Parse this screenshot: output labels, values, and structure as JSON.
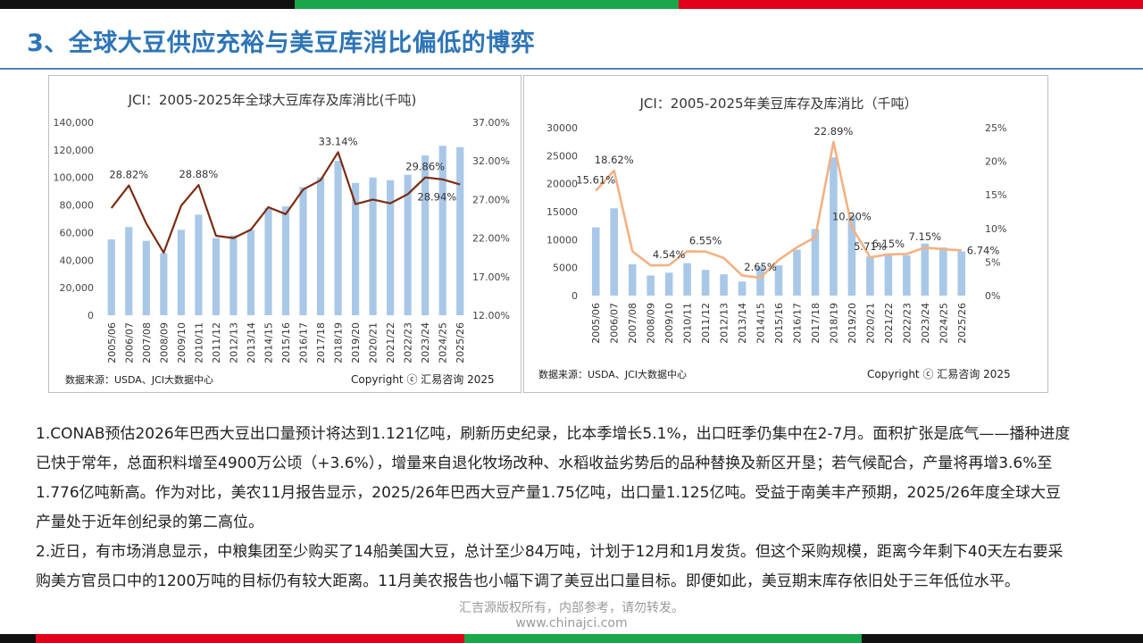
{
  "page": {
    "title": "3、全球大豆供应充裕与美豆库消比偏低的博弈",
    "paragraph1": "1.CONAB预估2026年巴西大豆出口量预计将达到1.121亿吨，刷新历史纪录，比本季增长5.1%，出口旺季仍集中在2-7月。面积扩张是底气——播种进度已快于常年，总面积料增至4900万公顷（+3.6%），增量来自退化牧场改种、水稻收益劣势后的品种替换及新区开垦；若气候配合，产量将再增3.6%至1.776亿吨新高。作为对比，美农11月报告显示，2025/26年巴西大豆产量1.75亿吨，出口量1.125亿吨。受益于南美丰产预期，2025/26年度全球大豆产量处于近年创纪录的第二高位。",
    "paragraph2": "2.近日，有市场消息显示，中粮集团至少购买了14船美国大豆，总计至少84万吨，计划于12月和1月发货。但这个采购规模，距离今年剩下40天左右要采购美方官员口中的1200万吨的目标仍有较大距离。11月美农报告也小幅下调了美豆出口量目标。即便如此，美豆期末库存依旧处于三年低位水平。",
    "footer_line1": "汇吉源版权所有，内部参考，请勿转发。",
    "footer_line2": "www.chinajci.com",
    "colors": {
      "title": "#2e75b6",
      "bar": "#a9c8e8",
      "line_global": "#7b2c12",
      "line_us": "#f4b183",
      "stripe_red": "#e2001a",
      "stripe_green": "#1aa64a",
      "stripe_black": "#111111"
    }
  },
  "chart_data": [
    {
      "type": "bar",
      "title": "JCI：2005-2025年全球大豆库存及库消比(千吨)",
      "categories": [
        "2005/06",
        "2006/07",
        "2007/08",
        "2008/09",
        "2009/10",
        "2010/11",
        "2011/12",
        "2012/13",
        "2013/14",
        "2014/15",
        "2015/16",
        "2016/17",
        "2017/18",
        "2018/19",
        "2019/20",
        "2020/21",
        "2021/22",
        "2022/23",
        "2023/24",
        "2024/25",
        "2025/26"
      ],
      "series": [
        {
          "values": [
            55000,
            64000,
            54000,
            45000,
            62000,
            73000,
            56000,
            58000,
            62000,
            78000,
            79000,
            93000,
            100000,
            112000,
            96000,
            100000,
            98000,
            102000,
            116000,
            123000,
            122000
          ]
        },
        {
          "axis": "right",
          "values": [
            25.9,
            28.82,
            23.9,
            20.1,
            26.2,
            28.88,
            22.3,
            22.0,
            23.1,
            26.0,
            25.1,
            28.3,
            29.5,
            33.14,
            26.4,
            27.0,
            26.5,
            27.7,
            29.86,
            29.6,
            28.94
          ]
        }
      ],
      "data_labels": [
        {
          "index": 1,
          "text": "28.82%"
        },
        {
          "index": 5,
          "text": "28.88%"
        },
        {
          "index": 13,
          "text": "33.14%"
        },
        {
          "index": 18,
          "text": "29.86%"
        },
        {
          "index": 20,
          "text": "28.94%"
        }
      ],
      "ylim": [
        0,
        140000
      ],
      "yticks": [
        "0",
        "20,000",
        "40,000",
        "60,000",
        "80,000",
        "100,000",
        "120,000",
        "140,000"
      ],
      "y2lim": [
        12,
        37
      ],
      "y2ticks": [
        "12.00%",
        "17.00%",
        "22.00%",
        "27.00%",
        "32.00%",
        "37.00%"
      ],
      "source": "数据来源：USDA、JCI大数据中心",
      "copyright": "Copyright ⓒ 汇易咨询 2025"
    },
    {
      "type": "bar",
      "title": "JCI：2005-2025年美豆库存及库消比（千吨）",
      "categories": [
        "2005/06",
        "2006/07",
        "2007/08",
        "2008/09",
        "2009/10",
        "2010/11",
        "2011/12",
        "2012/13",
        "2013/14",
        "2014/15",
        "2015/16",
        "2016/17",
        "2017/18",
        "2018/19",
        "2019/20",
        "2020/21",
        "2021/22",
        "2022/23",
        "2023/24",
        "2024/25",
        "2025/26"
      ],
      "series": [
        {
          "values": [
            12200,
            15600,
            5600,
            3600,
            4100,
            5800,
            4600,
            3800,
            2500,
            5200,
            5400,
            8200,
            11900,
            24700,
            14300,
            7000,
            7500,
            7200,
            9300,
            8600,
            7900
          ]
        },
        {
          "axis": "right",
          "values": [
            15.61,
            18.62,
            6.6,
            4.5,
            4.54,
            6.6,
            6.55,
            5.6,
            3.0,
            2.65,
            5.3,
            7.2,
            8.7,
            22.89,
            10.2,
            5.71,
            6.15,
            6.2,
            7.15,
            6.9,
            6.74
          ]
        }
      ],
      "data_labels": [
        {
          "index": 0,
          "text": "15.61%"
        },
        {
          "index": 1,
          "text": "18.62%"
        },
        {
          "index": 4,
          "text": "4.54%"
        },
        {
          "index": 6,
          "text": "6.55%"
        },
        {
          "index": 9,
          "text": "2.65%"
        },
        {
          "index": 13,
          "text": "22.89%"
        },
        {
          "index": 14,
          "text": "10.20%"
        },
        {
          "index": 15,
          "text": "5.71%"
        },
        {
          "index": 16,
          "text": "6.15%"
        },
        {
          "index": 18,
          "text": "7.15%"
        },
        {
          "index": 20,
          "text": "6.74%"
        }
      ],
      "ylim": [
        0,
        30000
      ],
      "yticks": [
        "0",
        "5000",
        "10000",
        "15000",
        "20000",
        "25000",
        "30000"
      ],
      "y2lim": [
        0,
        25
      ],
      "y2ticks": [
        "0%",
        "5%",
        "10%",
        "15%",
        "20%",
        "25%"
      ],
      "source": "数据来源：USDA、JCI大数据中心",
      "copyright": "Copyright ⓒ 汇易咨询 2025"
    }
  ]
}
